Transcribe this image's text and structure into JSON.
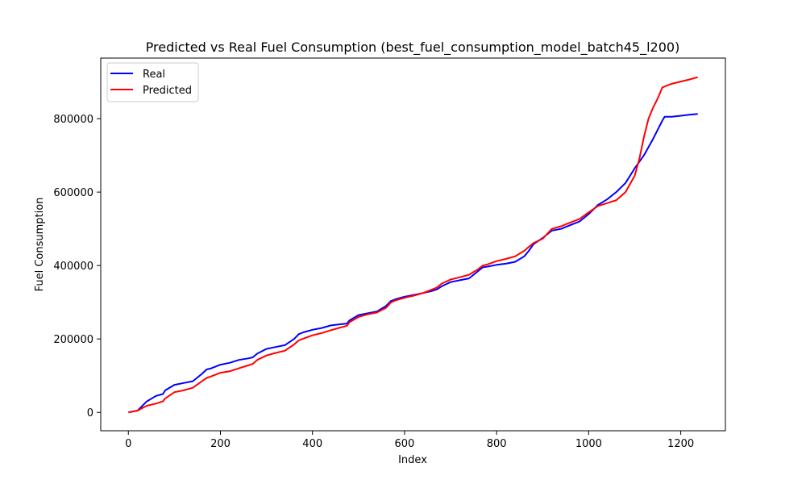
{
  "chart_data": {
    "type": "line",
    "title": "Predicted vs Real Fuel Consumption (best_fuel_consumption_model_batch45_l200)",
    "xlabel": "Index",
    "ylabel": "Fuel Consumption",
    "xlim": [
      -60,
      1297
    ],
    "ylim": [
      -50000,
      965000
    ],
    "xticks": [
      0,
      200,
      400,
      600,
      800,
      1000,
      1200
    ],
    "yticks": [
      0,
      200000,
      400000,
      600000,
      800000
    ],
    "grid": false,
    "legend": {
      "position": "top-left",
      "entries": [
        "Real",
        "Predicted"
      ]
    },
    "series": [
      {
        "name": "Real",
        "color": "#0000ff",
        "x": [
          0,
          20,
          40,
          60,
          75,
          80,
          100,
          120,
          140,
          160,
          170,
          180,
          200,
          220,
          240,
          260,
          270,
          280,
          300,
          320,
          340,
          360,
          370,
          380,
          400,
          420,
          440,
          460,
          475,
          480,
          500,
          520,
          540,
          560,
          570,
          580,
          600,
          620,
          640,
          660,
          670,
          680,
          700,
          720,
          740,
          760,
          770,
          780,
          800,
          820,
          840,
          860,
          870,
          880,
          900,
          920,
          940,
          960,
          980,
          1000,
          1020,
          1040,
          1060,
          1080,
          1100,
          1120,
          1140,
          1160,
          1165,
          1180,
          1200,
          1220,
          1237
        ],
        "y": [
          0,
          5000,
          30000,
          45000,
          50000,
          60000,
          75000,
          80000,
          85000,
          105000,
          117000,
          120000,
          130000,
          135000,
          143000,
          147000,
          150000,
          160000,
          173000,
          178000,
          183000,
          200000,
          213000,
          218000,
          225000,
          230000,
          237000,
          240000,
          242000,
          250000,
          265000,
          270000,
          275000,
          290000,
          303000,
          308000,
          315000,
          320000,
          325000,
          331000,
          335000,
          343000,
          355000,
          360000,
          365000,
          385000,
          395000,
          397000,
          402000,
          405000,
          410000,
          425000,
          440000,
          458000,
          475000,
          495000,
          500000,
          510000,
          520000,
          540000,
          565000,
          580000,
          600000,
          625000,
          665000,
          700000,
          745000,
          795000,
          805000,
          805000,
          808000,
          811000,
          813000
        ]
      },
      {
        "name": "Predicted",
        "color": "#ff0000",
        "x": [
          0,
          20,
          40,
          60,
          75,
          80,
          100,
          120,
          140,
          160,
          170,
          180,
          200,
          220,
          240,
          260,
          270,
          280,
          300,
          320,
          340,
          360,
          370,
          380,
          400,
          420,
          440,
          460,
          475,
          480,
          500,
          520,
          540,
          560,
          570,
          580,
          600,
          620,
          640,
          660,
          670,
          680,
          700,
          720,
          740,
          760,
          770,
          780,
          800,
          820,
          840,
          860,
          870,
          880,
          900,
          920,
          940,
          960,
          980,
          1000,
          1020,
          1040,
          1060,
          1080,
          1100,
          1110,
          1120,
          1130,
          1140,
          1150,
          1160,
          1170,
          1180,
          1200,
          1220,
          1237
        ],
        "y": [
          0,
          5000,
          18000,
          24000,
          30000,
          38000,
          55000,
          60000,
          67000,
          85000,
          94000,
          98000,
          108000,
          112000,
          120000,
          128000,
          132000,
          143000,
          155000,
          162000,
          168000,
          185000,
          196000,
          201000,
          210000,
          216000,
          224000,
          231000,
          236000,
          245000,
          260000,
          267000,
          272000,
          285000,
          299000,
          305000,
          312000,
          318000,
          325000,
          335000,
          340000,
          350000,
          362000,
          368000,
          375000,
          390000,
          400000,
          403000,
          412000,
          418000,
          425000,
          440000,
          451000,
          461000,
          473000,
          500000,
          507000,
          517000,
          527000,
          545000,
          562000,
          570000,
          578000,
          600000,
          645000,
          690000,
          750000,
          800000,
          830000,
          855000,
          885000,
          890000,
          895000,
          901000,
          907000,
          913000
        ]
      }
    ]
  }
}
